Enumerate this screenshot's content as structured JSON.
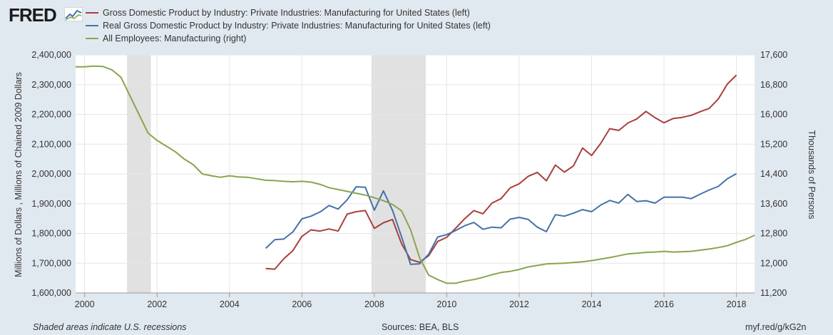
{
  "header": {
    "logo_text": "FRED",
    "logo_mark": "chart-logo-icon"
  },
  "footer": {
    "note": "Shaded areas indicate U.S. recessions",
    "sources": "Sources: BEA, BLS",
    "shortlink": "myf.red/g/kG2n"
  },
  "chart_data": {
    "type": "line",
    "title": "",
    "ylabel_left": "Millions of Dollars , Millions of Chained 2009 Dollars",
    "ylabel_right": "Thousands of Persons",
    "xlabel": "",
    "grid": true,
    "legend_position": "top-left",
    "xlim": [
      1999.75,
      2018.5
    ],
    "ylim_left": [
      1600000,
      2400000
    ],
    "ylim_right": [
      11200,
      17600
    ],
    "x_ticks": [
      2000,
      2002,
      2004,
      2006,
      2008,
      2010,
      2012,
      2014,
      2016,
      2018
    ],
    "x_tick_labels": [
      "2000",
      "2002",
      "2004",
      "2006",
      "2008",
      "2010",
      "2012",
      "2014",
      "2016",
      "2018"
    ],
    "y_left_ticks": [
      1600000,
      1700000,
      1800000,
      1900000,
      2000000,
      2100000,
      2200000,
      2300000,
      2400000
    ],
    "y_left_tick_labels": [
      "1,600,000",
      "1,700,000",
      "1,800,000",
      "1,900,000",
      "2,000,000",
      "2,100,000",
      "2,200,000",
      "2,300,000",
      "2,400,000"
    ],
    "y_right_ticks": [
      11200,
      12000,
      12800,
      13600,
      14400,
      15200,
      16000,
      16800,
      17600
    ],
    "y_right_tick_labels": [
      "11,200",
      "12,000",
      "12,800",
      "13,600",
      "14,400",
      "15,200",
      "16,000",
      "16,800",
      "17,600"
    ],
    "recessions": [
      [
        2001.17,
        2001.83
      ],
      [
        2007.92,
        2009.42
      ]
    ],
    "series": [
      {
        "name": "Gross Domestic Product by Industry: Private Industries: Manufacturing for United States (left)",
        "axis": "left",
        "color": "#a93f3f",
        "x": [
          2005.0,
          2005.25,
          2005.5,
          2005.75,
          2006.0,
          2006.25,
          2006.5,
          2006.75,
          2007.0,
          2007.25,
          2007.5,
          2007.75,
          2008.0,
          2008.25,
          2008.5,
          2008.75,
          2009.0,
          2009.25,
          2009.5,
          2009.75,
          2010.0,
          2010.25,
          2010.5,
          2010.75,
          2011.0,
          2011.25,
          2011.5,
          2011.75,
          2012.0,
          2012.25,
          2012.5,
          2012.75,
          2013.0,
          2013.25,
          2013.5,
          2013.75,
          2014.0,
          2014.25,
          2014.5,
          2014.75,
          2015.0,
          2015.25,
          2015.5,
          2015.75,
          2016.0,
          2016.25,
          2016.5,
          2016.75,
          2017.0,
          2017.25,
          2017.5,
          2017.75,
          2018.0
        ],
        "values": [
          1682000,
          1680000,
          1715000,
          1742000,
          1790000,
          1812000,
          1808000,
          1815000,
          1808000,
          1865000,
          1873000,
          1877000,
          1817000,
          1836000,
          1847000,
          1766000,
          1712000,
          1703000,
          1725000,
          1773000,
          1787000,
          1818000,
          1850000,
          1877000,
          1866000,
          1902000,
          1917000,
          1953000,
          1967000,
          1992000,
          2005000,
          1977000,
          2030000,
          2006000,
          2027000,
          2087000,
          2062000,
          2102000,
          2152000,
          2146000,
          2171000,
          2185000,
          2210000,
          2189000,
          2172000,
          2186000,
          2190000,
          2197000,
          2209000,
          2220000,
          2252000,
          2302000,
          2332000
        ]
      },
      {
        "name": "Real Gross Domestic Product by Industry: Private Industries: Manufacturing for United States (left)",
        "axis": "left",
        "color": "#4572a7",
        "x": [
          2005.0,
          2005.25,
          2005.5,
          2005.75,
          2006.0,
          2006.25,
          2006.5,
          2006.75,
          2007.0,
          2007.25,
          2007.5,
          2007.75,
          2008.0,
          2008.25,
          2008.5,
          2008.75,
          2009.0,
          2009.25,
          2009.5,
          2009.75,
          2010.0,
          2010.25,
          2010.5,
          2010.75,
          2011.0,
          2011.25,
          2011.5,
          2011.75,
          2012.0,
          2012.25,
          2012.5,
          2012.75,
          2013.0,
          2013.25,
          2013.5,
          2013.75,
          2014.0,
          2014.25,
          2014.5,
          2014.75,
          2015.0,
          2015.25,
          2015.5,
          2015.75,
          2016.0,
          2016.25,
          2016.5,
          2016.75,
          2017.0,
          2017.25,
          2017.5,
          2017.75,
          2018.0
        ],
        "values": [
          1750000,
          1779000,
          1781000,
          1805000,
          1849000,
          1858000,
          1872000,
          1894000,
          1882000,
          1913000,
          1957000,
          1955000,
          1878000,
          1943000,
          1878000,
          1789000,
          1696000,
          1698000,
          1730000,
          1788000,
          1796000,
          1810000,
          1826000,
          1837000,
          1814000,
          1821000,
          1819000,
          1848000,
          1854000,
          1847000,
          1821000,
          1806000,
          1863000,
          1858000,
          1868000,
          1880000,
          1873000,
          1895000,
          1911000,
          1902000,
          1931000,
          1907000,
          1910000,
          1902000,
          1922000,
          1922000,
          1922000,
          1917000,
          1932000,
          1946000,
          1958000,
          1984000,
          2001000
        ]
      },
      {
        "name": "All Employees: Manufacturing (right)",
        "axis": "right",
        "color": "#89a54e",
        "x": [
          1999.75,
          2000.0,
          2000.25,
          2000.5,
          2000.75,
          2001.0,
          2001.25,
          2001.5,
          2001.75,
          2002.0,
          2002.25,
          2002.5,
          2002.75,
          2003.0,
          2003.25,
          2003.5,
          2003.75,
          2004.0,
          2004.25,
          2004.5,
          2004.75,
          2005.0,
          2005.25,
          2005.5,
          2005.75,
          2006.0,
          2006.25,
          2006.5,
          2006.75,
          2007.0,
          2007.25,
          2007.5,
          2007.75,
          2008.0,
          2008.25,
          2008.5,
          2008.75,
          2009.0,
          2009.25,
          2009.5,
          2009.75,
          2010.0,
          2010.25,
          2010.5,
          2010.75,
          2011.0,
          2011.25,
          2011.5,
          2011.75,
          2012.0,
          2012.25,
          2012.5,
          2012.75,
          2013.0,
          2013.25,
          2013.5,
          2013.75,
          2014.0,
          2014.25,
          2014.5,
          2014.75,
          2015.0,
          2015.25,
          2015.5,
          2015.75,
          2016.0,
          2016.25,
          2016.5,
          2016.75,
          2017.0,
          2017.25,
          2017.5,
          2017.75,
          2018.0,
          2018.25,
          2018.5
        ],
        "values": [
          17280,
          17280,
          17300,
          17290,
          17200,
          17000,
          16500,
          16000,
          15500,
          15300,
          15150,
          15000,
          14800,
          14650,
          14400,
          14350,
          14310,
          14350,
          14320,
          14310,
          14270,
          14230,
          14220,
          14200,
          14190,
          14200,
          14180,
          14120,
          14030,
          13980,
          13930,
          13880,
          13830,
          13760,
          13680,
          13580,
          13410,
          12900,
          12150,
          11680,
          11560,
          11460,
          11460,
          11520,
          11560,
          11620,
          11690,
          11750,
          11780,
          11830,
          11900,
          11940,
          11980,
          11990,
          12000,
          12020,
          12040,
          12070,
          12110,
          12150,
          12200,
          12250,
          12270,
          12290,
          12300,
          12320,
          12300,
          12310,
          12320,
          12350,
          12380,
          12420,
          12470,
          12560,
          12640,
          12750
        ]
      }
    ]
  }
}
